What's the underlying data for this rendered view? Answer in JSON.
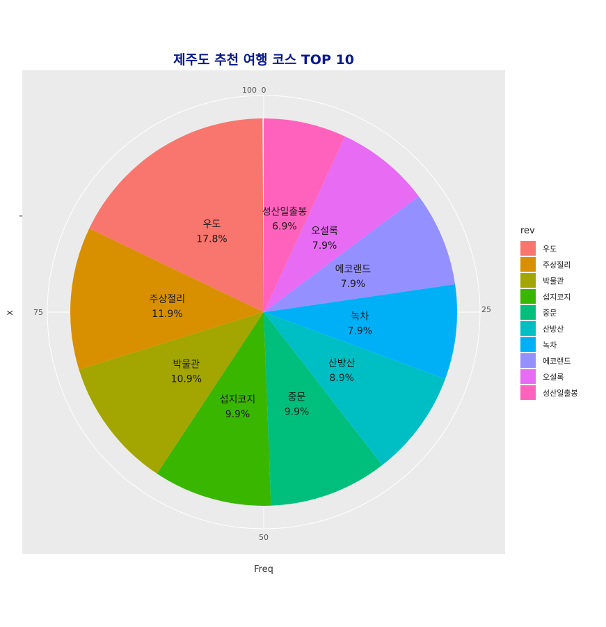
{
  "chart_data": {
    "type": "pie",
    "title": "제주도 추천 여행 코스 TOP 10",
    "xlabel": "Freq",
    "ylabel": "x",
    "legend_title": "rev",
    "legend_position": "right",
    "categories": [
      "우도",
      "주상절리",
      "박물관",
      "섭지코지",
      "중문",
      "산방산",
      "녹차",
      "에코랜드",
      "오설록",
      "성산일출봉"
    ],
    "percent_labels": [
      "17.8%",
      "11.9%",
      "10.9%",
      "9.9%",
      "9.9%",
      "8.9%",
      "7.9%",
      "7.9%",
      "7.9%",
      "6.9%"
    ],
    "values": [
      17.8,
      11.9,
      10.9,
      9.9,
      9.9,
      8.9,
      7.9,
      7.9,
      7.9,
      6.9
    ],
    "colors": [
      "#F8766D",
      "#D89000",
      "#A3A500",
      "#39B600",
      "#00BF7D",
      "#00BFC4",
      "#00B0F6",
      "#9590FF",
      "#E76BF3",
      "#FF62BC"
    ],
    "radial_ticks": [
      {
        "value": 0,
        "label": "0"
      },
      {
        "value": 25,
        "label": "25"
      },
      {
        "value": 50,
        "label": "50"
      },
      {
        "value": 75,
        "label": "75"
      },
      {
        "value": 100,
        "label": "100"
      }
    ],
    "axis_range": [
      0,
      100
    ],
    "grid": true
  }
}
